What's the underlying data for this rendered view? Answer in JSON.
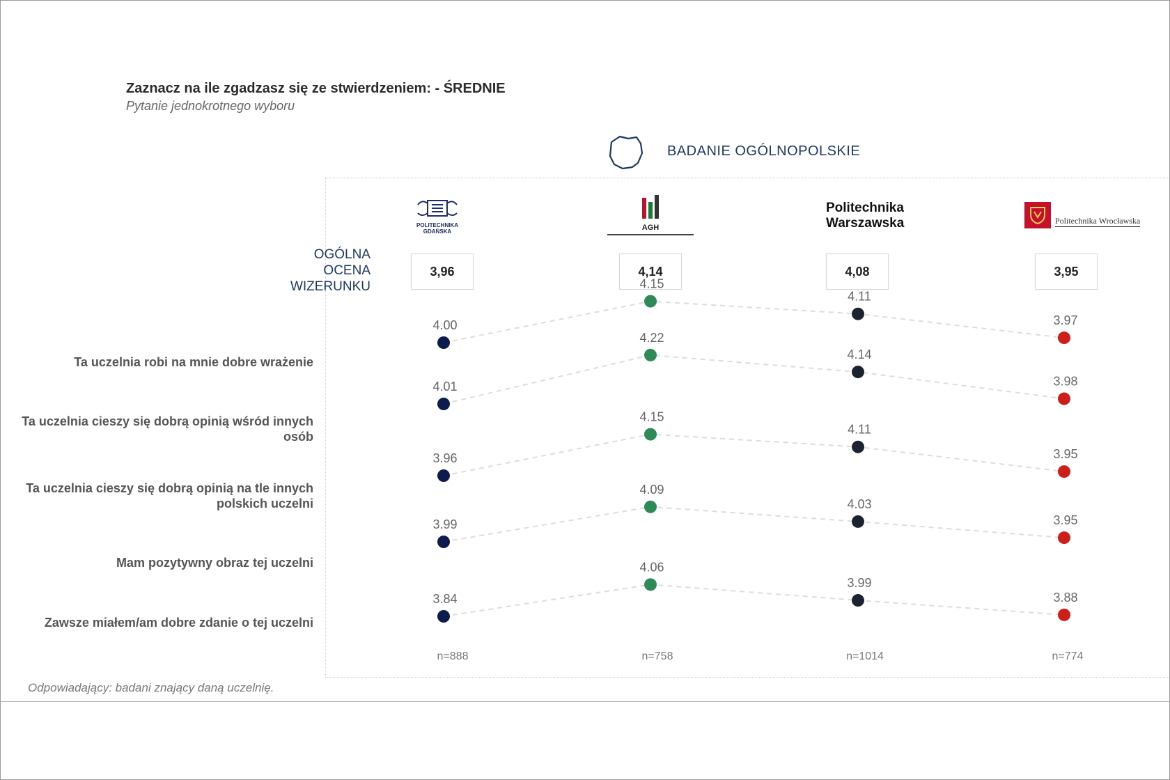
{
  "title": "Zaznacz na ile zgadzasz się ze stwierdzeniem: - ŚREDNIE",
  "subtitle": "Pytanie jednokrotnego wyboru",
  "study_label": "BADANIE OGÓLNOPOLSKIE",
  "overall_label_lines": [
    "OGÓLNA",
    "OCENA",
    "WIZERUNKU"
  ],
  "footnote": "Odpowiadający: badani znający daną uczelnię.",
  "logos": {
    "pg_text": "POLITECHNIKA GDAŃSKA",
    "agh_text": "AGH",
    "pw_lines": [
      "Politechnika",
      "Warszawska"
    ],
    "pwr_text": "Politechnika Wrocławska"
  },
  "colors": {
    "pg": "#0d1b4d",
    "agh": "#2e8b57",
    "pw": "#1c2330",
    "pwr": "#cc1f1a",
    "line": "#dddddd"
  },
  "chart_data": {
    "type": "scatter",
    "categories": [
      "Politechnika Gdańska",
      "AGH",
      "Politechnika Warszawska",
      "Politechnika Wrocławska"
    ],
    "overall_scores": [
      "3,96",
      "4,14",
      "4,08",
      "3,95"
    ],
    "sample_sizes": [
      "n=888",
      "n=758",
      "n=1014",
      "n=774"
    ],
    "statements": [
      "Ta uczelnia robi na mnie dobre wrażenie",
      "Ta uczelnia cieszy się dobrą opinią wśród innych osób",
      "Ta uczelnia cieszy się dobrą opinią na tle innych polskich uczelni",
      "Mam pozytywny obraz tej uczelni",
      "Zawsze miałem/am dobre zdanie o tej uczelni"
    ],
    "rows": [
      {
        "values": [
          4.0,
          4.15,
          4.11,
          3.97
        ],
        "labels": [
          "4.00",
          "4.15",
          "4.11",
          "3.97"
        ]
      },
      {
        "values": [
          4.01,
          4.22,
          4.14,
          3.98
        ],
        "labels": [
          "4.01",
          "4.22",
          "4.14",
          "3.98"
        ]
      },
      {
        "values": [
          3.96,
          4.15,
          4.11,
          3.95
        ],
        "labels": [
          "3.96",
          "4.15",
          "4.11",
          "3.95"
        ]
      },
      {
        "values": [
          3.99,
          4.09,
          4.03,
          3.95
        ],
        "labels": [
          "3.99",
          "4.09",
          "4.03",
          "3.95"
        ]
      },
      {
        "values": [
          3.84,
          4.06,
          3.99,
          3.88
        ],
        "labels": [
          "3.84",
          "4.06",
          "3.99",
          "3.88"
        ]
      }
    ]
  }
}
